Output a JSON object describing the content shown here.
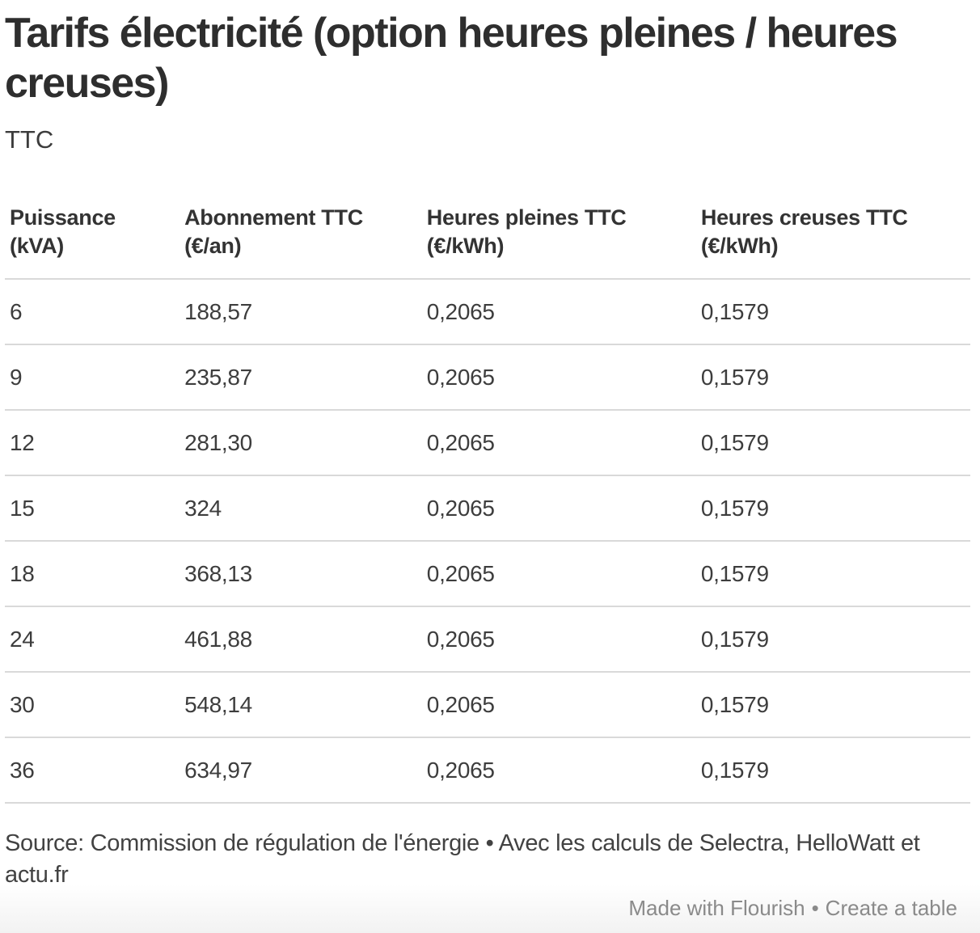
{
  "chart_data": {
    "type": "table",
    "title": "Tarifs électricité (option heures pleines / heures creuses)",
    "subtitle": "TTC",
    "columns": [
      "Puissance (kVA)",
      "Abonnement TTC (€/an)",
      "Heures pleines TTC (€/kWh)",
      "Heures creuses TTC (€/kWh)"
    ],
    "column_header_lines": [
      [
        "Puissance",
        "(kVA)"
      ],
      [
        "Abonnement TTC",
        "(€/an)"
      ],
      [
        "Heures pleines TTC",
        "(€/kWh)"
      ],
      [
        "Heures creuses TTC",
        "(€/kWh)"
      ]
    ],
    "rows": [
      [
        "6",
        "188,57",
        "0,2065",
        "0,1579"
      ],
      [
        "9",
        "235,87",
        "0,2065",
        "0,1579"
      ],
      [
        "12",
        "281,30",
        "0,2065",
        "0,1579"
      ],
      [
        "15",
        "324",
        "0,2065",
        "0,1579"
      ],
      [
        "18",
        "368,13",
        "0,2065",
        "0,1579"
      ],
      [
        "24",
        "461,88",
        "0,2065",
        "0,1579"
      ],
      [
        "30",
        "548,14",
        "0,2065",
        "0,1579"
      ],
      [
        "36",
        "634,97",
        "0,2065",
        "0,1579"
      ]
    ],
    "source": "Source: Commission de régulation de l'énergie • Avec les calculs de Selectra, HelloWatt et actu.fr"
  },
  "credit": {
    "made_with": "Made with Flourish",
    "separator": "•",
    "cta": "Create a table"
  },
  "colors": {
    "title": "#2e2e2e",
    "body_text": "#3d3d3d",
    "row_border": "#d9d9d9",
    "credit_text": "#8a8a8a",
    "credit_strip_bg": "#f2f2f2"
  }
}
